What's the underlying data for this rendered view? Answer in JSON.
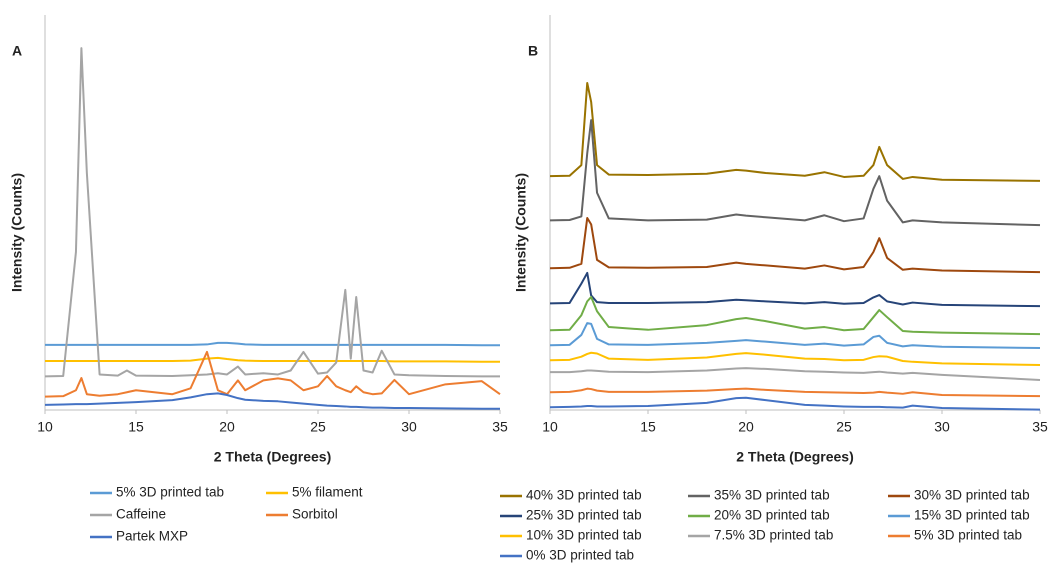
{
  "chart_data": [
    {
      "type": "line",
      "panel_label": "A",
      "xlabel": "2 Theta (Degrees)",
      "ylabel": "Intensity (Counts)",
      "xlim": [
        10,
        35
      ],
      "ylim": [
        0,
        100
      ],
      "xticks": [
        10,
        15,
        20,
        25,
        30,
        35
      ],
      "x": [
        10,
        11,
        11.7,
        12,
        12.3,
        13,
        14,
        14.5,
        15,
        17,
        18,
        18.9,
        19.5,
        20,
        20.6,
        21,
        22,
        22.8,
        23.5,
        24.2,
        25,
        25.5,
        26,
        26.5,
        26.8,
        27.1,
        27.5,
        28,
        28.5,
        29.2,
        30,
        32,
        34,
        35
      ],
      "series": [
        {
          "name": "5% 3D printed tab",
          "color": "#5b9bd5",
          "values": [
            16.5,
            16.5,
            16.5,
            16.5,
            16.5,
            16.5,
            16.5,
            16.5,
            16.5,
            16.5,
            16.5,
            16.6,
            17,
            17,
            16.8,
            16.6,
            16.5,
            16.5,
            16.5,
            16.5,
            16.5,
            16.5,
            16.5,
            16.5,
            16.5,
            16.5,
            16.5,
            16.5,
            16.5,
            16.5,
            16.5,
            16.5,
            16.4,
            16.4
          ]
        },
        {
          "name": "5% filament",
          "color": "#ffc000",
          "values": [
            12.4,
            12.4,
            12.4,
            12.4,
            12.4,
            12.4,
            12.4,
            12.4,
            12.4,
            12.4,
            12.5,
            13,
            13.2,
            12.9,
            12.6,
            12.5,
            12.4,
            12.4,
            12.4,
            12.4,
            12.4,
            12.4,
            12.4,
            12.4,
            12.4,
            12.4,
            12.4,
            12.4,
            12.4,
            12.3,
            12.3,
            12.3,
            12.2,
            12.2
          ]
        },
        {
          "name": "Caffeine",
          "color": "#a5a5a5",
          "values": [
            8.5,
            8.6,
            40,
            91.6,
            60,
            9,
            8.7,
            10,
            8.7,
            8.6,
            8.8,
            9,
            9.3,
            9,
            11,
            9,
            9.3,
            9,
            10,
            14.7,
            9.2,
            9.5,
            12,
            30.4,
            13,
            28.6,
            10,
            9.5,
            15,
            9,
            8.8,
            8.6,
            8.5,
            8.5
          ]
        },
        {
          "name": "Sorbitol",
          "color": "#ed7d31",
          "values": [
            3.4,
            3.5,
            5,
            8.1,
            4,
            3.6,
            4,
            4.5,
            5,
            4,
            5.5,
            14.7,
            5,
            4,
            7.5,
            5,
            7.5,
            8,
            7.5,
            5,
            6,
            8.6,
            6,
            5,
            4.5,
            6,
            4.5,
            4,
            4.2,
            7.6,
            4,
            6.5,
            7.3,
            4
          ]
        },
        {
          "name": "Partek MXP",
          "color": "#4472c4",
          "values": [
            1.3,
            1.4,
            1.5,
            1.5,
            1.5,
            1.6,
            1.8,
            1.9,
            2,
            2.5,
            3.2,
            4,
            4.2,
            3.8,
            3,
            2.6,
            2.3,
            2.2,
            1.9,
            1.6,
            1.3,
            1.1,
            1,
            0.9,
            0.8,
            0.8,
            0.7,
            0.6,
            0.6,
            0.5,
            0.5,
            0.4,
            0.3,
            0.3
          ]
        }
      ]
    },
    {
      "type": "line",
      "panel_label": "B",
      "xlabel": "2 Theta (Degrees)",
      "ylabel": "Intensity (Counts)",
      "xlim": [
        10,
        35
      ],
      "ylim": [
        0,
        100
      ],
      "xticks": [
        10,
        15,
        20,
        25,
        30,
        35
      ],
      "x": [
        10,
        11,
        11.6,
        11.9,
        12.1,
        12.4,
        13,
        15,
        18,
        19.5,
        20,
        21,
        23,
        24,
        25,
        26,
        26.5,
        26.8,
        27.2,
        28,
        28.5,
        30,
        35
      ],
      "series": [
        {
          "name": "40% 3D printed tab",
          "color": "#997300",
          "values": [
            59.2,
            59.3,
            62,
            82.8,
            78,
            62,
            59.6,
            59.5,
            59.8,
            60.8,
            60.6,
            60,
            59.3,
            60.2,
            59,
            59.3,
            62,
            66.6,
            62,
            58.5,
            59,
            58.3,
            58
          ]
        },
        {
          "name": "35% 3D printed tab",
          "color": "#636363",
          "values": [
            48,
            48.1,
            49,
            65,
            73.4,
            55,
            48.5,
            48,
            48.2,
            49.5,
            49.2,
            48.8,
            48,
            49.3,
            47.8,
            48.5,
            56,
            59.2,
            53,
            47.5,
            48,
            47.5,
            46.8
          ]
        },
        {
          "name": "30% 3D printed tab",
          "color": "#9e480e",
          "values": [
            35.9,
            36,
            37,
            48.6,
            47,
            38,
            36.1,
            36,
            36.2,
            37.3,
            37,
            36.6,
            35.8,
            36.6,
            35.6,
            36.2,
            40,
            43.5,
            38.5,
            35.5,
            35.8,
            35.3,
            34.9
          ]
        },
        {
          "name": "25% 3D printed tab",
          "color": "#264478",
          "values": [
            27,
            27.1,
            32,
            34.7,
            29,
            27.3,
            27.1,
            27.1,
            27.3,
            27.9,
            27.8,
            27.5,
            27,
            27.3,
            26.9,
            27.1,
            28.5,
            29.1,
            27.5,
            26.7,
            27.2,
            26.6,
            26.3
          ]
        },
        {
          "name": "20% 3D printed tab",
          "color": "#70ad47",
          "values": [
            20.2,
            20.3,
            24,
            27.5,
            28.6,
            25,
            21,
            20.3,
            21.5,
            23,
            23.3,
            22.5,
            20.6,
            21,
            20.2,
            20.5,
            23.5,
            25.3,
            23.5,
            20,
            19.8,
            19.6,
            19.2
          ]
        },
        {
          "name": "15% 3D printed tab",
          "color": "#5b9bd5",
          "values": [
            16.4,
            16.5,
            19,
            22,
            21.8,
            18,
            16.6,
            16.5,
            17,
            17.5,
            17.7,
            17.3,
            16.5,
            16.8,
            16.3,
            16.6,
            18.5,
            18.8,
            17,
            16.1,
            16.4,
            16,
            15.7
          ]
        },
        {
          "name": "10% 3D printed tab",
          "color": "#ffc000",
          "values": [
            12.6,
            12.7,
            13.5,
            14.2,
            14.5,
            14.3,
            13,
            12.7,
            13.3,
            14.2,
            14.4,
            14,
            13,
            12.9,
            12.6,
            12.7,
            13.4,
            13.6,
            13.5,
            12.4,
            12.2,
            11.8,
            11.4
          ]
        },
        {
          "name": "7.5% 3D printed tab",
          "color": "#a5a5a5",
          "values": [
            9.6,
            9.6,
            9.8,
            10,
            10,
            9.9,
            9.7,
            9.6,
            10,
            10.5,
            10.6,
            10.4,
            9.8,
            9.7,
            9.5,
            9.4,
            9.6,
            9.7,
            9.5,
            9.2,
            9.4,
            8.9,
            7.6
          ]
        },
        {
          "name": "5% 3D printed tab",
          "color": "#ed7d31",
          "values": [
            4.5,
            4.6,
            5,
            5.4,
            5.3,
            4.9,
            4.6,
            4.6,
            4.9,
            5.3,
            5.4,
            5.1,
            4.6,
            4.5,
            4.4,
            4.3,
            4.4,
            4.6,
            4.4,
            4.1,
            4.5,
            3.8,
            3.5
          ]
        },
        {
          "name": "0% 3D printed tab",
          "color": "#4472c4",
          "values": [
            0.7,
            0.8,
            0.9,
            1,
            1,
            0.9,
            0.9,
            1,
            1.8,
            3,
            3.1,
            2.5,
            1.3,
            1.1,
            0.9,
            0.8,
            0.8,
            0.8,
            0.7,
            0.6,
            1.1,
            0.5,
            0.1
          ]
        }
      ]
    }
  ]
}
